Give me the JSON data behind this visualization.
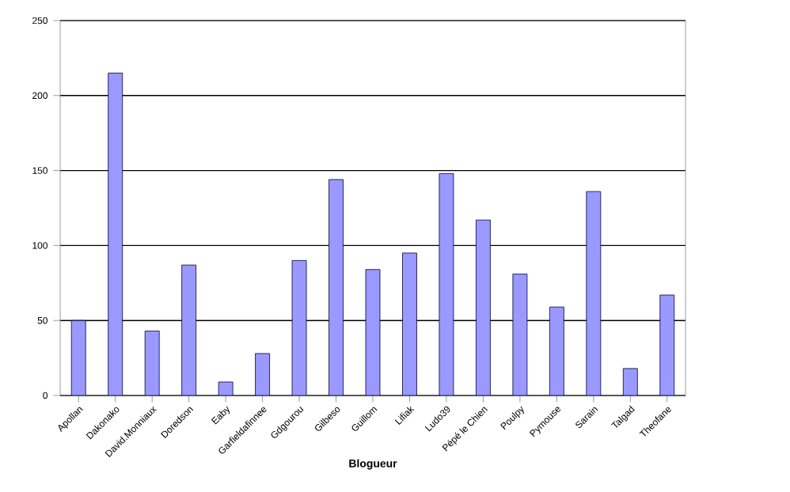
{
  "chart_data": {
    "type": "bar",
    "xlabel": "Blogueur",
    "categories": [
      "Apollan",
      "Dakonako",
      "David.Monniaux",
      "Doredson",
      "Eaby",
      "Garfieldafinnee",
      "Gdgourou",
      "Gilbeso",
      "Guillom",
      "Lifiak",
      "Ludo39",
      "Pépé le Chien",
      "Poulpy",
      "Pymouse",
      "Sarain",
      "Talgad",
      "Theofane"
    ],
    "values": [
      50,
      215,
      43,
      87,
      9,
      28,
      90,
      144,
      84,
      95,
      148,
      117,
      81,
      59,
      136,
      18,
      67
    ],
    "color": "#9999ff",
    "ylim": [
      0,
      250
    ],
    "yticks": [
      0,
      50,
      100,
      150,
      200,
      250
    ],
    "grid": "y"
  }
}
